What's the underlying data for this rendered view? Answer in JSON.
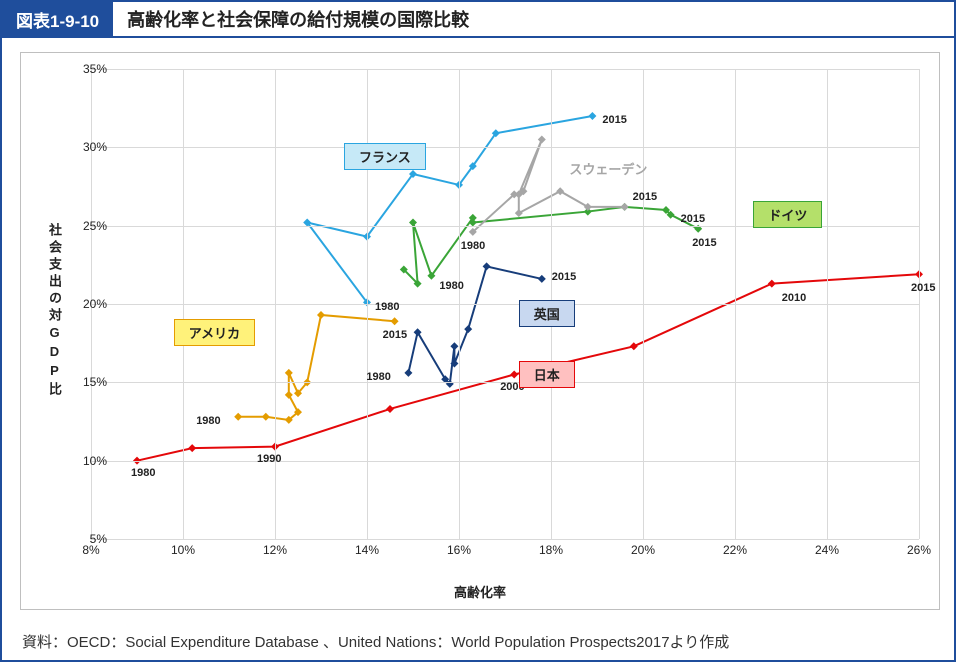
{
  "figure_number": "図表1-9-10",
  "title": "高齢化率と社会保障の給付規模の国際比較",
  "source": "資料：OECD：Social Expenditure Database 、United Nations：World Population Prospects2017より作成",
  "chart": {
    "type": "scatter-line",
    "xlabel": "高齢化率",
    "ylabel": "社会支出の対GDP比",
    "xlim": [
      8,
      26
    ],
    "ylim": [
      5,
      35
    ],
    "xtick_step": 2,
    "ytick_step": 5,
    "tick_suffix": "%",
    "background_color": "#ffffff",
    "grid_color": "#d9d9d9",
    "tick_fontsize": 12,
    "label_fontsize": 13,
    "marker_size": 8,
    "line_width": 2,
    "series": {
      "japan": {
        "label": "日本",
        "color": "#e4080a",
        "marker": "diamond",
        "label_box_bg": "#ffc0c0",
        "label_box_border": "#e4080a",
        "label_pos": {
          "x": 17.3,
          "y": 15.6
        },
        "points": [
          {
            "x": 9.0,
            "y": 10.0,
            "annot": "1980",
            "annot_dx": -6,
            "annot_dy": 12
          },
          {
            "x": 10.2,
            "y": 10.8
          },
          {
            "x": 12.0,
            "y": 10.9,
            "annot": "1990",
            "annot_dx": -18,
            "annot_dy": 12
          },
          {
            "x": 14.5,
            "y": 13.3
          },
          {
            "x": 17.2,
            "y": 15.5,
            "annot": "2000",
            "annot_dx": -14,
            "annot_dy": 12
          },
          {
            "x": 19.8,
            "y": 17.3
          },
          {
            "x": 22.8,
            "y": 21.3,
            "annot": "2010",
            "annot_dx": 10,
            "annot_dy": 14
          },
          {
            "x": 26.0,
            "y": 21.9,
            "annot": "2015",
            "annot_dx": -8,
            "annot_dy": 14
          }
        ]
      },
      "usa": {
        "label": "アメリカ",
        "color": "#e49c00",
        "marker": "diamond",
        "label_box_bg": "#fff27a",
        "label_box_border": "#e49c00",
        "label_pos": {
          "x": 9.8,
          "y": 18.3
        },
        "points": [
          {
            "x": 11.2,
            "y": 12.8,
            "annot": "1980",
            "annot_dx": -42,
            "annot_dy": 4
          },
          {
            "x": 11.8,
            "y": 12.8
          },
          {
            "x": 12.3,
            "y": 12.6
          },
          {
            "x": 12.5,
            "y": 13.1
          },
          {
            "x": 12.3,
            "y": 14.2
          },
          {
            "x": 12.3,
            "y": 15.6
          },
          {
            "x": 12.5,
            "y": 14.3
          },
          {
            "x": 12.7,
            "y": 15.0
          },
          {
            "x": 13.0,
            "y": 19.3
          },
          {
            "x": 14.6,
            "y": 18.9,
            "annot": "2015",
            "annot_dx": -12,
            "annot_dy": 14
          }
        ]
      },
      "uk": {
        "label": "英国",
        "color": "#173d7a",
        "marker": "diamond",
        "label_box_bg": "#c8d8f0",
        "label_box_border": "#173d7a",
        "label_pos": {
          "x": 17.3,
          "y": 19.5
        },
        "points": [
          {
            "x": 14.9,
            "y": 15.6,
            "annot": "1980",
            "annot_dx": -42,
            "annot_dy": 4
          },
          {
            "x": 15.1,
            "y": 18.2
          },
          {
            "x": 15.7,
            "y": 15.2
          },
          {
            "x": 15.8,
            "y": 14.9
          },
          {
            "x": 15.9,
            "y": 17.3
          },
          {
            "x": 15.9,
            "y": 16.2
          },
          {
            "x": 16.2,
            "y": 18.4
          },
          {
            "x": 16.6,
            "y": 22.4
          },
          {
            "x": 17.8,
            "y": 21.6,
            "annot": "2015",
            "annot_dx": 10,
            "annot_dy": -2
          }
        ]
      },
      "germany": {
        "label": "ドイツ",
        "color": "#3aa537",
        "marker": "diamond",
        "label_box_bg": "#b4e06a",
        "label_box_border": "#3aa537",
        "label_pos": {
          "x": 22.4,
          "y": 25.8
        },
        "points": [
          {
            "x": 14.8,
            "y": 22.2
          },
          {
            "x": 15.1,
            "y": 21.3
          },
          {
            "x": 15.0,
            "y": 25.2
          },
          {
            "x": 15.4,
            "y": 21.8,
            "annot": "1980",
            "annot_dx": 8,
            "annot_dy": 10
          },
          {
            "x": 16.3,
            "y": 25.5
          },
          {
            "x": 16.3,
            "y": 25.2
          },
          {
            "x": 18.8,
            "y": 25.9
          },
          {
            "x": 19.6,
            "y": 26.2
          },
          {
            "x": 20.5,
            "y": 26.0
          },
          {
            "x": 20.6,
            "y": 25.7,
            "annot": "2015",
            "annot_dx": 10,
            "annot_dy": 4
          },
          {
            "x": 21.2,
            "y": 24.8,
            "annot": "2015",
            "annot_dx": -6,
            "annot_dy": 14
          }
        ]
      },
      "france": {
        "label": "フランス",
        "color": "#2aa5e0",
        "marker": "diamond",
        "label_box_bg": "#c6e9f7",
        "label_box_border": "#2aa5e0",
        "label_pos": {
          "x": 13.5,
          "y": 29.5
        },
        "points": [
          {
            "x": 14.0,
            "y": 20.1,
            "annot": "1980",
            "annot_dx": 8,
            "annot_dy": 5
          },
          {
            "x": 12.7,
            "y": 25.2
          },
          {
            "x": 14.0,
            "y": 24.3
          },
          {
            "x": 15.0,
            "y": 28.3
          },
          {
            "x": 16.0,
            "y": 27.6
          },
          {
            "x": 16.3,
            "y": 28.8
          },
          {
            "x": 16.8,
            "y": 30.9
          },
          {
            "x": 18.9,
            "y": 32.0,
            "annot": "2015",
            "annot_dx": 10,
            "annot_dy": 4
          }
        ]
      },
      "sweden": {
        "label": "スウェーデン",
        "color": "#a6a6a6",
        "marker": "diamond",
        "label_box_bg": null,
        "label_box_border": null,
        "label_pos": {
          "x": 18.4,
          "y": 28.5
        },
        "points": [
          {
            "x": 16.3,
            "y": 24.6,
            "annot": "1980",
            "annot_dx": -12,
            "annot_dy": 14
          },
          {
            "x": 17.2,
            "y": 27.0
          },
          {
            "x": 17.4,
            "y": 27.2
          },
          {
            "x": 17.8,
            "y": 30.5
          },
          {
            "x": 17.3,
            "y": 27.0
          },
          {
            "x": 17.3,
            "y": 25.8
          },
          {
            "x": 18.2,
            "y": 27.2
          },
          {
            "x": 18.8,
            "y": 26.2
          },
          {
            "x": 19.6,
            "y": 26.2,
            "annot": "2015",
            "annot_dx": 8,
            "annot_dy": -10
          }
        ]
      }
    }
  }
}
